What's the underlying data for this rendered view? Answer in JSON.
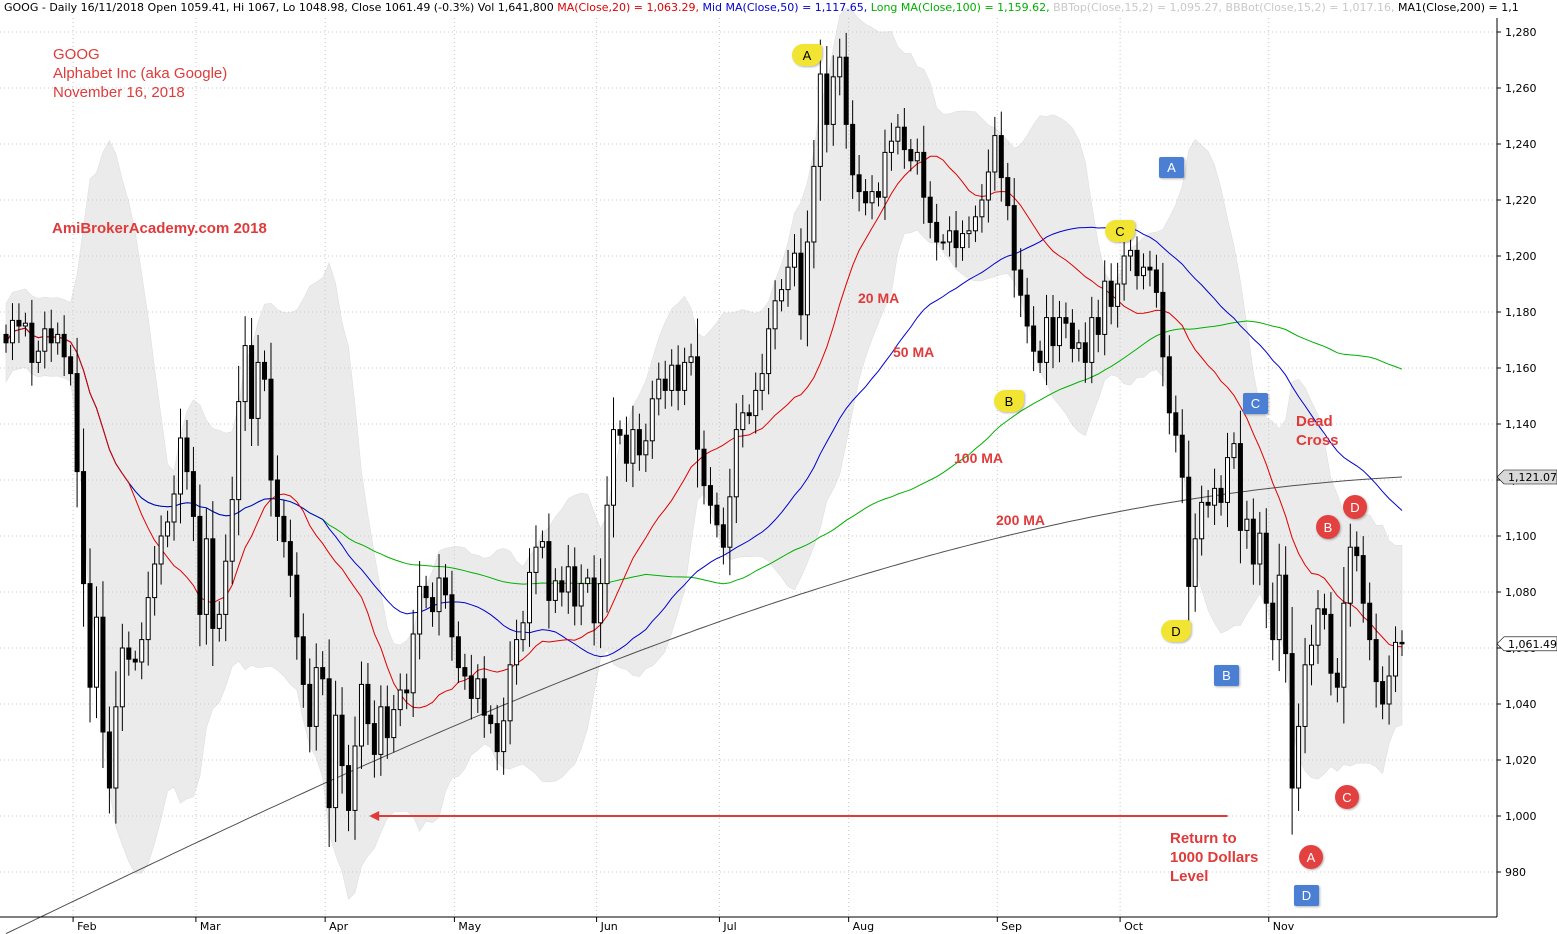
{
  "header": {
    "prefix": "GOOG - Daily 16/11/2018 Open 1059.41, Hi 1067, Lo 1048.98, Close 1061.49 (-0.3%) Vol 1,641,800 ",
    "ma20": "MA(Close,20) = 1,063.29, ",
    "ma50": "Mid MA(Close,50) = 1,117.65, ",
    "ma100": "Long MA(Close,100) = 1,159.62, ",
    "bbtop": "BBTop(Close,15,2) = 1,095.27, ",
    "bbbot": "BBBot(Close,15,2) = 1,017.16, ",
    "ma200": "MA1(Close,200) = 1,1"
  },
  "annotations": {
    "title_lines": [
      "GOOG",
      "Alphabet Inc (aka Google)",
      "November 16, 2018"
    ],
    "site": "AmiBrokerAcademy.com  2018",
    "ma_labels": {
      "ma20": "20 MA",
      "ma50": "50 MA",
      "ma100": "100 MA",
      "ma200": "200 MA"
    },
    "dead_cross": [
      "Dead",
      "Cross"
    ],
    "return_note": [
      "Return to",
      "1000 Dollars",
      "Level"
    ],
    "yellow_badges": [
      "A",
      "B",
      "C",
      "D"
    ],
    "blue_badges": [
      "A",
      "B",
      "C",
      "D"
    ],
    "red_badges": [
      "A",
      "B",
      "C",
      "D"
    ]
  },
  "colors": {
    "ma20": "#e00000",
    "ma50": "#0000d0",
    "ma100": "#00b000",
    "ma200": "#505050",
    "bband": "#e8e8e8",
    "annotation_red": "#e03a3a",
    "arrow": "#e03a3a",
    "badge_yellow": "#f2e432",
    "badge_blue": "#4a7fd4",
    "badge_red": "#e34040"
  },
  "chart_data": {
    "type": "candlestick",
    "symbol": "GOOG",
    "ylim": [
      966,
      1286
    ],
    "yticks": [
      "1,280",
      "1,260",
      "1,240",
      "1,220",
      "1,200",
      "1,180",
      "1,160",
      "1,140",
      "1,120",
      "1,100",
      "1,080",
      "1,060",
      "1,040",
      "1,020",
      "1,000",
      "980"
    ],
    "months": [
      {
        "label": "Feb",
        "index": 11
      },
      {
        "label": "Mar",
        "index": 30
      },
      {
        "label": "Apr",
        "index": 50
      },
      {
        "label": "May",
        "index": 70
      },
      {
        "label": "Jun",
        "index": 92
      },
      {
        "label": "Jul",
        "index": 111
      },
      {
        "label": "Aug",
        "index": 131
      },
      {
        "label": "Sep",
        "index": 154
      },
      {
        "label": "Oct",
        "index": 173
      },
      {
        "label": "Nov",
        "index": 196
      }
    ],
    "last_price_label": "1,061.49",
    "ma200_label": "1,121.07",
    "ma200_last": 1121.07,
    "closes": [
      1169,
      1177,
      1175,
      1176,
      1162,
      1166,
      1174,
      1169,
      1172,
      1164,
      1158,
      1123,
      1083,
      1046,
      1071,
      1030,
      1010,
      1039,
      1060,
      1056,
      1055,
      1063,
      1078,
      1090,
      1100,
      1105,
      1115,
      1135,
      1123,
      1107,
      1072,
      1099,
      1067,
      1072,
      1091,
      1113,
      1148,
      1168,
      1142,
      1162,
      1156,
      1120,
      1107,
      1098,
      1086,
      1064,
      1047,
      1032,
      1053,
      1049,
      1003,
      1036,
      1018,
      1002,
      1025,
      1047,
      1033,
      1022,
      1039,
      1028,
      1038,
      1045,
      1044,
      1065,
      1082,
      1078,
      1073,
      1085,
      1079,
      1064,
      1053,
      1050,
      1042,
      1049,
      1036,
      1033,
      1023,
      1034,
      1054,
      1063,
      1069,
      1087,
      1096,
      1098,
      1077,
      1084,
      1080,
      1089,
      1075,
      1083,
      1085,
      1069,
      1083,
      1111,
      1138,
      1136,
      1126,
      1138,
      1129,
      1134,
      1149,
      1156,
      1152,
      1161,
      1152,
      1162,
      1164,
      1131,
      1118,
      1111,
      1104,
      1096,
      1114,
      1138,
      1144,
      1143,
      1152,
      1158,
      1174,
      1184,
      1188,
      1196,
      1201,
      1179,
      1205,
      1232,
      1265,
      1247,
      1264,
      1271,
      1247,
      1229,
      1223,
      1219,
      1223,
      1221,
      1237,
      1241,
      1246,
      1238,
      1234,
      1237,
      1221,
      1212,
      1205,
      1205,
      1209,
      1203,
      1208,
      1209,
      1214,
      1220,
      1230,
      1243,
      1228,
      1218,
      1195,
      1186,
      1175,
      1166,
      1162,
      1178,
      1168,
      1178,
      1176,
      1167,
      1169,
      1162,
      1178,
      1172,
      1191,
      1182,
      1190,
      1200,
      1202,
      1193,
      1196,
      1195,
      1187,
      1164,
      1144,
      1136,
      1121,
      1082,
      1099,
      1112,
      1111,
      1117,
      1112,
      1128,
      1133,
      1102,
      1106,
      1090,
      1101,
      1076,
      1063,
      1086,
      1058,
      1010,
      1032,
      1054,
      1061,
      1074,
      1072,
      1051,
      1046,
      1076,
      1096,
      1093,
      1076,
      1063,
      1048,
      1040,
      1050,
      1062,
      1061.49
    ],
    "series": [
      {
        "name": "MA(Close,20)",
        "key": "ma20"
      },
      {
        "name": "Mid MA(Close,50)",
        "key": "ma50"
      },
      {
        "name": "Long MA(Close,100)",
        "key": "ma100"
      },
      {
        "name": "MA1(Close,200)",
        "key": "ma200"
      },
      {
        "name": "BBTop(Close,15,2)",
        "key": "bbtop"
      },
      {
        "name": "BBBot(Close,15,2)",
        "key": "bbbot"
      }
    ],
    "arrow": {
      "from_index": 189,
      "to_index": 50,
      "price": 1000
    }
  }
}
